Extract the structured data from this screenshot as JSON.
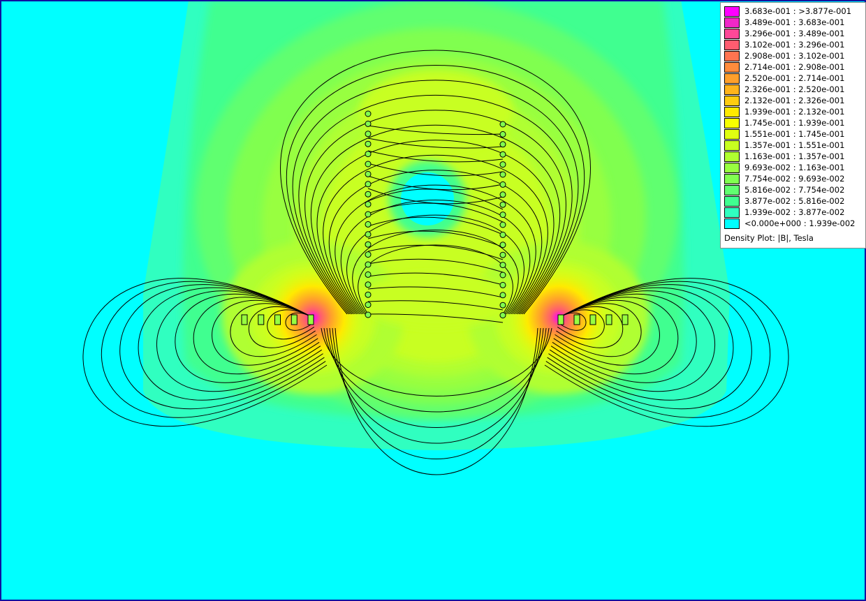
{
  "chart_data": {
    "type": "heatmap",
    "title": "Density Plot: |B|, Tesla",
    "legend_placement": "top-right",
    "background_color": "#00ffff",
    "legend": [
      {
        "label": "3.683e-001 : >3.877e-001",
        "color": "#ff00ff"
      },
      {
        "label": "3.489e-001 : 3.683e-001",
        "color": "#f028c8"
      },
      {
        "label": "3.296e-001 : 3.489e-001",
        "color": "#ff4898"
      },
      {
        "label": "3.102e-001 : 3.296e-001",
        "color": "#ff5c70"
      },
      {
        "label": "2.908e-001 : 3.102e-001",
        "color": "#ff7450"
      },
      {
        "label": "2.714e-001 : 2.908e-001",
        "color": "#ff8c3c"
      },
      {
        "label": "2.520e-001 : 2.714e-001",
        "color": "#ffa02c"
      },
      {
        "label": "2.326e-001 : 2.520e-001",
        "color": "#ffb41c"
      },
      {
        "label": "2.132e-001 : 2.326e-001",
        "color": "#ffcc10"
      },
      {
        "label": "1.939e-001 : 2.132e-001",
        "color": "#ffea00"
      },
      {
        "label": "1.745e-001 : 1.939e-001",
        "color": "#f8ff00"
      },
      {
        "label": "1.551e-001 : 1.745e-001",
        "color": "#e0ff10"
      },
      {
        "label": "1.357e-001 : 1.551e-001",
        "color": "#c8ff20"
      },
      {
        "label": "1.163e-001 : 1.357e-001",
        "color": "#b0ff30"
      },
      {
        "label": "9.693e-002 : 1.163e-001",
        "color": "#98ff40"
      },
      {
        "label": "7.754e-002 : 9.693e-002",
        "color": "#80ff50"
      },
      {
        "label": "5.816e-002 : 7.754e-002",
        "color": "#60ff70"
      },
      {
        "label": "3.877e-002 : 5.816e-002",
        "color": "#40ff90"
      },
      {
        "label": "1.939e-002 : 3.877e-002",
        "color": "#30ffc0"
      },
      {
        "label": "<0.000e+000 : 1.939e-002",
        "color": "#00ffff"
      }
    ]
  }
}
